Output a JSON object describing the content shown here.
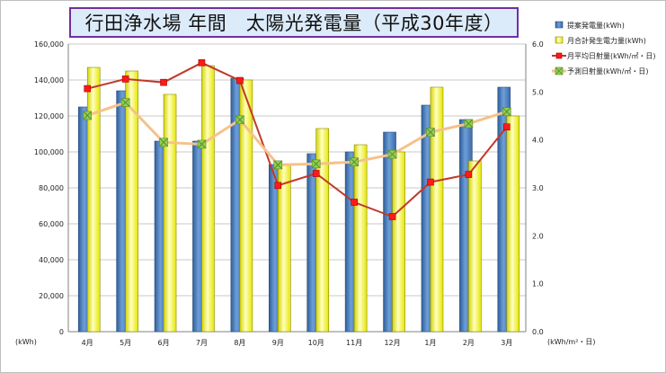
{
  "chart_data": {
    "type": "bar",
    "title": "行田浄水場 年間　太陽光発電量（平成30年度）",
    "categories": [
      "4月",
      "5月",
      "6月",
      "7月",
      "8月",
      "9月",
      "10月",
      "11月",
      "12月",
      "1月",
      "2月",
      "3月"
    ],
    "y_left_label": "(kWh)",
    "y_right_label": "(kWh/m²・日)",
    "y_left_lim": [
      0,
      160000
    ],
    "y_left_ticks": [
      "0",
      "20,000",
      "40,000",
      "60,000",
      "80,000",
      "100,000",
      "120,000",
      "140,000",
      "160,000"
    ],
    "y_right_lim": [
      0,
      6.0
    ],
    "y_right_ticks": [
      "0.0",
      "1.0",
      "2.0",
      "3.0",
      "4.0",
      "5.0",
      "6.0"
    ],
    "grid": true,
    "legend_position": "right",
    "series": [
      {
        "name": "提案発電量(kWh)",
        "kind": "bar",
        "axis": "left",
        "color": "#4a7ebb",
        "values": [
          125000,
          134000,
          106000,
          106000,
          141000,
          93000,
          99000,
          100000,
          111000,
          126000,
          118000,
          136000
        ]
      },
      {
        "name": "月合計発生電力量(kWh)",
        "kind": "bar",
        "axis": "left",
        "color": "#ffff00",
        "values": [
          147000,
          145000,
          132000,
          148000,
          140000,
          93000,
          113000,
          104000,
          100000,
          136000,
          95000,
          120000
        ]
      },
      {
        "name": "月平均日射量(kWh/㎡・日)",
        "kind": "line",
        "axis": "right",
        "color": "#c0392b",
        "marker": "#ff1a1a",
        "values": [
          5.07,
          5.27,
          5.2,
          5.61,
          5.24,
          3.05,
          3.3,
          2.7,
          2.4,
          3.12,
          3.28,
          4.27
        ]
      },
      {
        "name": "予測日射量(kWh/㎡・日)",
        "kind": "line",
        "axis": "right",
        "color": "#f5c28a",
        "marker": "#92d050",
        "values": [
          4.51,
          4.78,
          3.95,
          3.91,
          4.42,
          3.48,
          3.5,
          3.54,
          3.7,
          4.16,
          4.34,
          4.59
        ]
      }
    ]
  }
}
